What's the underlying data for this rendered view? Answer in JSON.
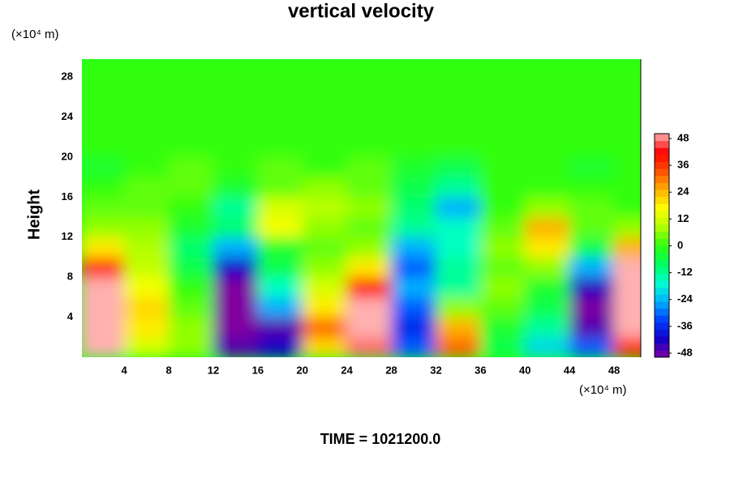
{
  "chart_data": {
    "type": "contour",
    "title": "vertical velocity",
    "ylabel": "Height",
    "yunit": "(×10⁴ m)",
    "xunit": "(×10⁴ m)",
    "footer": "TIME = 1021200.0",
    "xlim": [
      0.2,
      50.4
    ],
    "ylim": [
      0,
      29.8
    ],
    "xticks": [
      4,
      8,
      12,
      16,
      20,
      24,
      28,
      32,
      36,
      40,
      44,
      48
    ],
    "yticks": [
      4,
      8,
      12,
      16,
      20,
      24,
      28
    ],
    "x": [
      2,
      6,
      10,
      14,
      18,
      22,
      26,
      30,
      34,
      38,
      42,
      46,
      50
    ],
    "y": [
      1,
      3,
      5,
      7,
      9,
      11,
      13,
      15,
      17,
      19,
      21,
      23,
      25,
      27,
      29
    ],
    "z": [
      [
        50,
        12,
        6,
        -45,
        -40,
        20,
        45,
        -30,
        30,
        -6,
        -20,
        -30,
        35
      ],
      [
        52,
        18,
        6,
        -48,
        -45,
        30,
        50,
        -35,
        24,
        -3,
        -12,
        -45,
        48
      ],
      [
        52,
        20,
        3,
        -48,
        -24,
        18,
        48,
        -30,
        6,
        3,
        -6,
        -48,
        52
      ],
      [
        48,
        15,
        0,
        -48,
        -15,
        12,
        40,
        -24,
        -12,
        6,
        -3,
        -42,
        52
      ],
      [
        36,
        10,
        -6,
        -40,
        -6,
        6,
        18,
        -30,
        -12,
        3,
        6,
        -24,
        48
      ],
      [
        18,
        8,
        -9,
        -24,
        -3,
        3,
        6,
        -24,
        -15,
        6,
        18,
        -6,
        24
      ],
      [
        6,
        6,
        -3,
        -9,
        15,
        6,
        3,
        -12,
        -15,
        3,
        24,
        3,
        6
      ],
      [
        3,
        3,
        0,
        -12,
        12,
        9,
        6,
        -9,
        -24,
        0,
        6,
        3,
        0
      ],
      [
        0,
        3,
        3,
        -3,
        3,
        6,
        3,
        -6,
        -12,
        0,
        0,
        0,
        0
      ],
      [
        -3,
        0,
        3,
        0,
        3,
        0,
        3,
        -3,
        -6,
        0,
        0,
        -3,
        0
      ],
      [
        0,
        0,
        0,
        0,
        0,
        0,
        0,
        0,
        0,
        0,
        0,
        0,
        0
      ],
      [
        0,
        0,
        0,
        0,
        0,
        0,
        0,
        0,
        0,
        0,
        0,
        0,
        0
      ],
      [
        0,
        0,
        0,
        0,
        0,
        0,
        0,
        0,
        0,
        0,
        0,
        0,
        0
      ],
      [
        0,
        0,
        0,
        0,
        0,
        0,
        0,
        0,
        0,
        0,
        0,
        0,
        0
      ],
      [
        0,
        0,
        0,
        0,
        0,
        0,
        0,
        0,
        0,
        0,
        0,
        0,
        0
      ]
    ],
    "zlim": [
      -48,
      48
    ],
    "zticks": [
      48,
      36,
      24,
      12,
      0,
      -12,
      -24,
      -36,
      -48
    ],
    "colors": [
      "#8000a0",
      "#1000c8",
      "#0040ff",
      "#00b0ff",
      "#00ffd0",
      "#00ff60",
      "#30ff10",
      "#b0ff00",
      "#ffff00",
      "#ffb000",
      "#ff5000",
      "#ff0000",
      "#ffb0b0"
    ]
  }
}
